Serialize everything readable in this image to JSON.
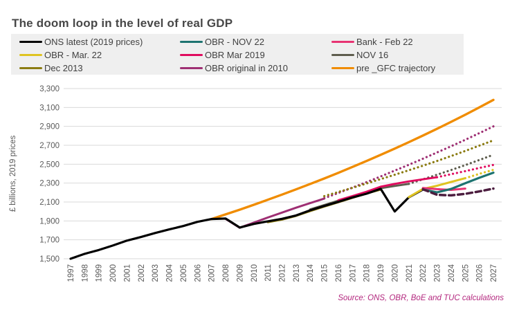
{
  "title": "The doom loop in the level of real GDP",
  "source": "Source: ONS, OBR, BoE and TUC calculations",
  "colors": {
    "title_text": "#474747",
    "legend_bg": "#efefef",
    "axis_text": "#595959",
    "gridline": "#d9d9d9",
    "source_text": "#b3277e"
  },
  "legend": {
    "position": "top",
    "items": [
      {
        "label": "ONS latest (2019 prices)",
        "color": "#000000"
      },
      {
        "label": "OBR - NOV 22",
        "color": "#1d7370"
      },
      {
        "label": "Bank - Feb 22",
        "color": "#e73372"
      },
      {
        "label": "OBR - Mar. 22",
        "color": "#dfc321"
      },
      {
        "label": "OBR Mar 2019",
        "color": "#e00b5e"
      },
      {
        "label": "NOV 16",
        "color": "#5e5d4e"
      },
      {
        "label": "Dec 2013",
        "color": "#8b7b10"
      },
      {
        "label": "OBR original in 2010",
        "color": "#9e2f73"
      },
      {
        "label": "pre _GFC trajectory",
        "color": "#f08c00"
      }
    ]
  },
  "chart_data": {
    "type": "line",
    "title": "The doom loop in the level of real GDP",
    "xlabel": "",
    "ylabel": "£ billions, 2019 prices",
    "ylim": [
      1500,
      3300
    ],
    "ytick_step": 200,
    "y_ticks": [
      "1,500",
      "1,700",
      "1,900",
      "2,100",
      "2,300",
      "2,500",
      "2,700",
      "2,900",
      "3,100",
      "3,300"
    ],
    "xlim": [
      1997,
      2027
    ],
    "x_ticks": [
      1997,
      1998,
      1999,
      2000,
      2001,
      2002,
      2003,
      2004,
      2005,
      2006,
      2007,
      2008,
      2009,
      2010,
      2011,
      2012,
      2013,
      2014,
      2015,
      2016,
      2017,
      2018,
      2019,
      2020,
      2021,
      2022,
      2023,
      2024,
      2025,
      2026,
      2027
    ],
    "grid": "horizontal",
    "legend_position": "top",
    "series": [
      {
        "name": "pre _GFC trajectory",
        "color": "#f08c00",
        "width": 3.4,
        "segments": [
          {
            "style": "solid",
            "points": [
              [
                2007,
                1920
              ],
              [
                2008,
                1969
              ],
              [
                2009,
                2019
              ],
              [
                2010,
                2071
              ],
              [
                2011,
                2124
              ],
              [
                2012,
                2178
              ],
              [
                2013,
                2234
              ],
              [
                2014,
                2291
              ],
              [
                2015,
                2349
              ],
              [
                2016,
                2409
              ],
              [
                2017,
                2471
              ],
              [
                2018,
                2534
              ],
              [
                2019,
                2599
              ],
              [
                2020,
                2665
              ],
              [
                2021,
                2733
              ],
              [
                2022,
                2803
              ],
              [
                2023,
                2874
              ],
              [
                2024,
                2948
              ],
              [
                2025,
                3023
              ],
              [
                2026,
                3100
              ],
              [
                2027,
                3180
              ]
            ]
          }
        ]
      },
      {
        "name": "OBR original in 2010",
        "color": "#9e2f73",
        "width": 3,
        "segments": [
          {
            "style": "solid",
            "points": [
              [
                2008,
                1922
              ],
              [
                2009,
                1828
              ],
              [
                2010,
                1882
              ],
              [
                2011,
                1936
              ],
              [
                2012,
                1988
              ],
              [
                2013,
                2040
              ],
              [
                2014,
                2088
              ],
              [
                2015,
                2136
              ]
            ]
          },
          {
            "style": "dotted",
            "points": [
              [
                2015,
                2140
              ],
              [
                2016,
                2196
              ],
              [
                2017,
                2252
              ],
              [
                2018,
                2310
              ],
              [
                2019,
                2370
              ],
              [
                2020,
                2432
              ],
              [
                2021,
                2494
              ],
              [
                2022,
                2558
              ],
              [
                2023,
                2624
              ],
              [
                2024,
                2690
              ],
              [
                2025,
                2758
              ],
              [
                2026,
                2828
              ],
              [
                2027,
                2900
              ]
            ]
          }
        ]
      },
      {
        "name": "Dec 2013",
        "color": "#8b7b10",
        "width": 3,
        "segments": [
          {
            "style": "solid",
            "points": [
              [
                2011,
                1886
              ],
              [
                2012,
                1914
              ],
              [
                2013,
                1954
              ],
              [
                2014,
                2004
              ],
              [
                2015,
                2052
              ],
              [
                2016,
                2098
              ],
              [
                2017,
                2144
              ],
              [
                2018,
                2190
              ],
              [
                2019,
                2232
              ]
            ]
          },
          {
            "style": "dotted",
            "points": [
              [
                2015,
                2162
              ],
              [
                2016,
                2206
              ],
              [
                2017,
                2250
              ],
              [
                2018,
                2296
              ],
              [
                2019,
                2342
              ],
              [
                2020,
                2388
              ],
              [
                2021,
                2436
              ],
              [
                2022,
                2484
              ],
              [
                2023,
                2534
              ],
              [
                2024,
                2586
              ],
              [
                2025,
                2640
              ],
              [
                2026,
                2696
              ],
              [
                2027,
                2752
              ]
            ]
          }
        ]
      },
      {
        "name": "NOV 16",
        "color": "#5e5d4e",
        "width": 3,
        "segments": [
          {
            "style": "solid",
            "points": [
              [
                2014,
                2022
              ],
              [
                2015,
                2068
              ],
              [
                2016,
                2114
              ],
              [
                2017,
                2158
              ],
              [
                2018,
                2202
              ],
              [
                2019,
                2246
              ],
              [
                2020,
                2270
              ],
              [
                2021,
                2292
              ]
            ]
          },
          {
            "style": "dotted",
            "points": [
              [
                2021,
                2292
              ],
              [
                2022,
                2340
              ],
              [
                2023,
                2388
              ],
              [
                2024,
                2438
              ],
              [
                2025,
                2490
              ],
              [
                2026,
                2544
              ],
              [
                2027,
                2600
              ]
            ]
          }
        ]
      },
      {
        "name": "OBR Mar 2019",
        "color": "#e00b5e",
        "width": 3,
        "segments": [
          {
            "style": "solid",
            "points": [
              [
                2016,
                2118
              ],
              [
                2017,
                2162
              ],
              [
                2018,
                2208
              ],
              [
                2019,
                2262
              ],
              [
                2020,
                2292
              ],
              [
                2021,
                2318
              ],
              [
                2022,
                2340
              ],
              [
                2023,
                2362
              ]
            ]
          },
          {
            "style": "dotted",
            "points": [
              [
                2023,
                2362
              ],
              [
                2024,
                2394
              ],
              [
                2025,
                2426
              ],
              [
                2026,
                2460
              ],
              [
                2027,
                2492
              ]
            ]
          }
        ]
      },
      {
        "name": "ONS latest (2019 prices)",
        "color": "#000000",
        "width": 3.2,
        "segments": [
          {
            "style": "solid",
            "points": [
              [
                1997,
                1500
              ],
              [
                1998,
                1552
              ],
              [
                1999,
                1592
              ],
              [
                2000,
                1640
              ],
              [
                2001,
                1692
              ],
              [
                2002,
                1730
              ],
              [
                2003,
                1772
              ],
              [
                2004,
                1810
              ],
              [
                2005,
                1846
              ],
              [
                2006,
                1890
              ],
              [
                2007,
                1920
              ],
              [
                2008,
                1925
              ],
              [
                2009,
                1830
              ],
              [
                2010,
                1868
              ],
              [
                2011,
                1896
              ],
              [
                2012,
                1922
              ],
              [
                2013,
                1958
              ],
              [
                2014,
                2012
              ],
              [
                2015,
                2058
              ],
              [
                2016,
                2102
              ],
              [
                2017,
                2148
              ],
              [
                2018,
                2188
              ],
              [
                2019,
                2240
              ],
              [
                2020,
                2000
              ],
              [
                2021,
                2150
              ],
              [
                2022,
                2232
              ]
            ]
          }
        ]
      },
      {
        "name": "OBR - Mar. 22",
        "color": "#dfc321",
        "width": 3,
        "segments": [
          {
            "style": "solid",
            "points": [
              [
                2021,
                2152
              ],
              [
                2022,
                2238
              ],
              [
                2023,
                2272
              ],
              [
                2024,
                2312
              ],
              [
                2025,
                2352
              ]
            ]
          },
          {
            "style": "dotted",
            "points": [
              [
                2025,
                2352
              ],
              [
                2026,
                2398
              ],
              [
                2027,
                2440
              ]
            ]
          }
        ]
      },
      {
        "name": "Bank - Feb 22",
        "color": "#e73372",
        "width": 3,
        "segments": [
          {
            "style": "solid",
            "points": [
              [
                2022,
                2248
              ],
              [
                2023,
                2236
              ],
              [
                2024,
                2228
              ],
              [
                2025,
                2242
              ]
            ]
          }
        ]
      },
      {
        "name": "OBR - NOV 22",
        "color": "#1d7370",
        "width": 3.2,
        "segments": [
          {
            "style": "solid",
            "points": [
              [
                2022,
                2232
              ],
              [
                2023,
                2202
              ],
              [
                2024,
                2238
              ],
              [
                2025,
                2298
              ],
              [
                2026,
                2356
              ],
              [
                2027,
                2410
              ]
            ]
          }
        ]
      },
      {
        "name": "unlabelled dashed line",
        "color": "#4c1d3f",
        "width": 3.5,
        "segments": [
          {
            "style": "dashed",
            "points": [
              [
                2022,
                2235
              ],
              [
                2023,
                2176
              ],
              [
                2024,
                2170
              ],
              [
                2025,
                2186
              ],
              [
                2026,
                2212
              ],
              [
                2027,
                2242
              ]
            ]
          }
        ]
      }
    ]
  }
}
